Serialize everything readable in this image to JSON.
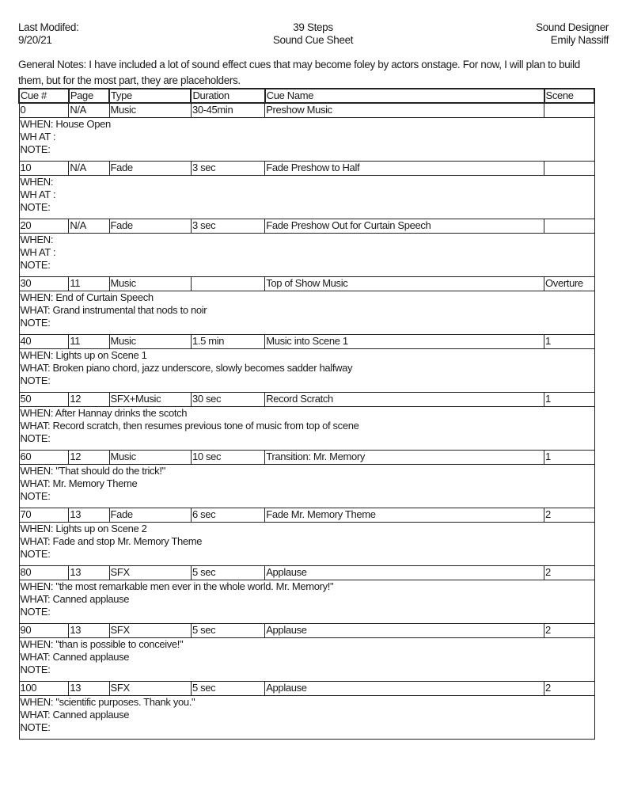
{
  "header": {
    "left": [
      "Last Modifed:",
      "9/20/21"
    ],
    "center": [
      "39 Steps",
      "Sound Cue Sheet"
    ],
    "right": [
      "Sound Designer",
      "Emily Nassiff"
    ]
  },
  "general_notes": "General Notes: I have included a lot of sound effect cues that may become foley by actors onstage. For now, I will plan to build them, but for the most part, they are placeholders.",
  "columns": [
    "Cue #",
    "Page",
    "Type",
    "Duration",
    "Cue Name",
    "Scene"
  ],
  "cues": [
    {
      "cue": "0",
      "page": "N/A",
      "type": "Music",
      "duration": "30-45min",
      "name": "Preshow Music",
      "scene": "",
      "when": "WHEN: House Open",
      "what": "WH AT :",
      "note": "NOTE:"
    },
    {
      "cue": "10",
      "page": "N/A",
      "type": "Fade",
      "duration": "3 sec",
      "name": "Fade Preshow to Half",
      "scene": "",
      "when": "WHEN:",
      "what": "WH AT :",
      "note": "NOTE:"
    },
    {
      "cue": "20",
      "page": "N/A",
      "type": "Fade",
      "duration": "3 sec",
      "name": "Fade Preshow Out for Curtain Speech",
      "scene": "",
      "when": "WHEN:",
      "what": "WH AT :",
      "note": "NOTE:"
    },
    {
      "cue": "30",
      "page": "11",
      "type": "Music",
      "duration": "",
      "name": "Top of Show Music",
      "scene": "Overture",
      "when": "WHEN: End of Curtain Speech",
      "what": "WHAT: Grand instrumental that nods to noir",
      "note": "NOTE:"
    },
    {
      "cue": "40",
      "page": "11",
      "type": "Music",
      "duration": "1.5 min",
      "name": "Music into Scene 1",
      "scene": "1",
      "when": "WHEN: Lights up on Scene 1",
      "what": "WHAT: Broken piano chord, jazz underscore, slowly becomes sadder halfway",
      "note": "NOTE:"
    },
    {
      "cue": "50",
      "page": "12",
      "type": "SFX+Music",
      "duration": "30 sec",
      "name": "Record Scratch",
      "scene": "1",
      "when": "WHEN: After Hannay drinks the scotch",
      "what": "WHAT: Record scratch, then resumes previous tone of music from top of scene",
      "note": "NOTE:"
    },
    {
      "cue": "60",
      "page": "12",
      "type": "Music",
      "duration": "10 sec",
      "name": "Transition: Mr. Memory",
      "scene": "1",
      "when": "WHEN: \"That should do the trick!\"",
      "what": "WHAT: Mr. Memory Theme",
      "note": "NOTE:"
    },
    {
      "cue": "70",
      "page": "13",
      "type": "Fade",
      "duration": "6 sec",
      "name": "Fade Mr. Memory Theme",
      "scene": "2",
      "when": "WHEN: Lights up on Scene 2",
      "what": "WHAT: Fade and stop Mr. Memory Theme",
      "note": "NOTE:"
    },
    {
      "cue": "80",
      "page": "13",
      "type": "SFX",
      "duration": "5 sec",
      "name": "Applause",
      "scene": "2",
      "when": "WHEN: \"the most remarkable men ever in the whole world. Mr. Memory!\"",
      "what": "WHAT: Canned applause",
      "note": "NOTE:"
    },
    {
      "cue": "90",
      "page": "13",
      "type": "SFX",
      "duration": "5 sec",
      "name": "Applause",
      "scene": "2",
      "when": "WHEN: \"than is possible to conceive!\"",
      "what": "WHAT: Canned applause",
      "note": "NOTE:"
    },
    {
      "cue": "100",
      "page": "13",
      "type": "SFX",
      "duration": "5 sec",
      "name": "Applause",
      "scene": "2",
      "when": "WHEN: \"scientific purposes. Thank you.\"",
      "what": "WHAT: Canned applause",
      "note": "NOTE:"
    }
  ]
}
